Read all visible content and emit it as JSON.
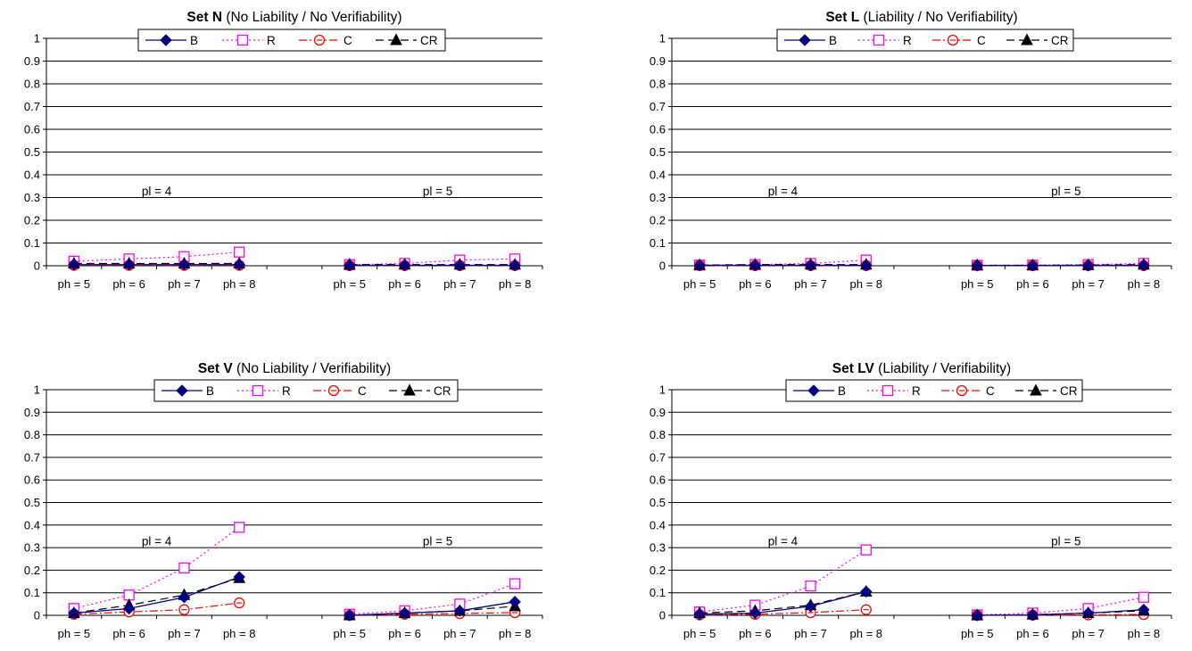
{
  "chart_data": [
    {
      "type": "line",
      "title_bold": "Set N",
      "title_rest": " (No Liability / No Verifiability)",
      "categories": [
        "ph = 5",
        "ph = 6",
        "ph = 7",
        "ph = 8",
        "",
        "ph = 5",
        "ph = 6",
        "ph = 7",
        "ph = 8"
      ],
      "ylim": [
        0,
        1
      ],
      "yticks": [
        "0",
        "0.1",
        "0.2",
        "0.3",
        "0.4",
        "0.5",
        "0.6",
        "0.7",
        "0.8",
        "0.9",
        "1"
      ],
      "grid": true,
      "legend": "top-center",
      "annotations": [
        {
          "text": "pl = 4",
          "x": 1.5,
          "y": 0.33
        },
        {
          "text": "pl = 5",
          "x": 6.6,
          "y": 0.33
        }
      ],
      "series": [
        {
          "name": "B",
          "color": "#000080",
          "values": [
            0.005,
            0.005,
            0.005,
            0.005,
            null,
            0.002,
            0.002,
            0.002,
            0.002
          ]
        },
        {
          "name": "R",
          "color": "#ff00ff",
          "values": [
            0.02,
            0.03,
            0.04,
            0.06,
            null,
            0.005,
            0.01,
            0.025,
            0.03
          ]
        },
        {
          "name": "C",
          "color": "#ff0000",
          "values": [
            0.002,
            0.002,
            0.002,
            0.002,
            null,
            0.001,
            0.001,
            0.001,
            0.001
          ]
        },
        {
          "name": "CR",
          "color": "#000000",
          "values": [
            0.01,
            0.01,
            0.01,
            0.01,
            null,
            0.005,
            0.005,
            0.005,
            0.005
          ]
        }
      ]
    },
    {
      "type": "line",
      "title_bold": "Set L",
      "title_rest": " (Liability / No Verifiability)",
      "categories": [
        "ph = 5",
        "ph = 6",
        "ph = 7",
        "ph = 8",
        "",
        "ph = 5",
        "ph = 6",
        "ph = 7",
        "ph = 8"
      ],
      "ylim": [
        0,
        1
      ],
      "yticks": [
        "0",
        "0.1",
        "0.2",
        "0.3",
        "0.4",
        "0.5",
        "0.6",
        "0.7",
        "0.8",
        "0.9",
        "1"
      ],
      "grid": true,
      "legend": "top-center",
      "annotations": [
        {
          "text": "pl = 4",
          "x": 1.5,
          "y": 0.33
        },
        {
          "text": "pl = 5",
          "x": 6.6,
          "y": 0.33
        }
      ],
      "series": [
        {
          "name": "B",
          "color": "#000080",
          "values": [
            0.002,
            0.002,
            0.002,
            0.002,
            null,
            0.001,
            0.001,
            0.001,
            0.002
          ]
        },
        {
          "name": "R",
          "color": "#ff00ff",
          "values": [
            0.003,
            0.005,
            0.01,
            0.025,
            null,
            0.002,
            0.003,
            0.005,
            0.01
          ]
        },
        {
          "name": "C",
          "color": "#ff0000",
          "values": [
            0.001,
            0.001,
            0.001,
            0.001,
            null,
            0.001,
            0.001,
            0.001,
            0.001
          ]
        },
        {
          "name": "CR",
          "color": "#000000",
          "values": [
            0.003,
            0.005,
            0.005,
            0.005,
            null,
            0.002,
            0.002,
            0.003,
            0.005
          ]
        }
      ]
    },
    {
      "type": "line",
      "title_bold": "Set V",
      "title_rest": " (No Liability / Verifiability)",
      "categories": [
        "ph = 5",
        "ph = 6",
        "ph = 7",
        "ph = 8",
        "",
        "ph = 5",
        "ph = 6",
        "ph = 7",
        "ph = 8"
      ],
      "ylim": [
        0,
        1
      ],
      "yticks": [
        "0",
        "0.1",
        "0.2",
        "0.3",
        "0.4",
        "0.5",
        "0.6",
        "0.7",
        "0.8",
        "0.9",
        "1"
      ],
      "grid": true,
      "legend": "top-center",
      "annotations": [
        {
          "text": "pl = 4",
          "x": 1.5,
          "y": 0.33
        },
        {
          "text": "pl = 5",
          "x": 6.6,
          "y": 0.33
        }
      ],
      "series": [
        {
          "name": "B",
          "color": "#000080",
          "values": [
            0.01,
            0.03,
            0.08,
            0.17,
            null,
            0.0,
            0.01,
            0.02,
            0.06
          ]
        },
        {
          "name": "R",
          "color": "#ff00ff",
          "values": [
            0.03,
            0.09,
            0.21,
            0.39,
            null,
            0.005,
            0.02,
            0.05,
            0.14
          ]
        },
        {
          "name": "C",
          "color": "#ff0000",
          "values": [
            0.005,
            0.015,
            0.025,
            0.055,
            null,
            0.0,
            0.005,
            0.008,
            0.012
          ]
        },
        {
          "name": "CR",
          "color": "#000000",
          "values": [
            0.01,
            0.045,
            0.09,
            0.165,
            null,
            0.0,
            0.01,
            0.02,
            0.04
          ]
        }
      ]
    },
    {
      "type": "line",
      "title_bold": "Set LV",
      "title_rest": " (Liability / Verifiability)",
      "categories": [
        "ph = 5",
        "ph = 6",
        "ph = 7",
        "ph = 8",
        "",
        "ph = 5",
        "ph = 6",
        "ph = 7",
        "ph = 8"
      ],
      "ylim": [
        0,
        1
      ],
      "yticks": [
        "0",
        "0.1",
        "0.2",
        "0.3",
        "0.4",
        "0.5",
        "0.6",
        "0.7",
        "0.8",
        "0.9",
        "1"
      ],
      "grid": true,
      "legend": "top-center",
      "annotations": [
        {
          "text": "pl = 4",
          "x": 1.5,
          "y": 0.33
        },
        {
          "text": "pl = 5",
          "x": 6.6,
          "y": 0.33
        }
      ],
      "series": [
        {
          "name": "B",
          "color": "#000080",
          "values": [
            0.005,
            0.01,
            0.04,
            0.105,
            null,
            0.0,
            0.002,
            0.01,
            0.025
          ]
        },
        {
          "name": "R",
          "color": "#ff00ff",
          "values": [
            0.015,
            0.045,
            0.13,
            0.29,
            null,
            0.002,
            0.01,
            0.03,
            0.08
          ]
        },
        {
          "name": "C",
          "color": "#ff0000",
          "values": [
            0.002,
            0.005,
            0.012,
            0.025,
            null,
            0.0,
            0.001,
            0.002,
            0.004
          ]
        },
        {
          "name": "CR",
          "color": "#000000",
          "values": [
            0.01,
            0.02,
            0.045,
            0.105,
            null,
            0.0,
            0.003,
            0.01,
            0.02
          ]
        }
      ]
    }
  ]
}
